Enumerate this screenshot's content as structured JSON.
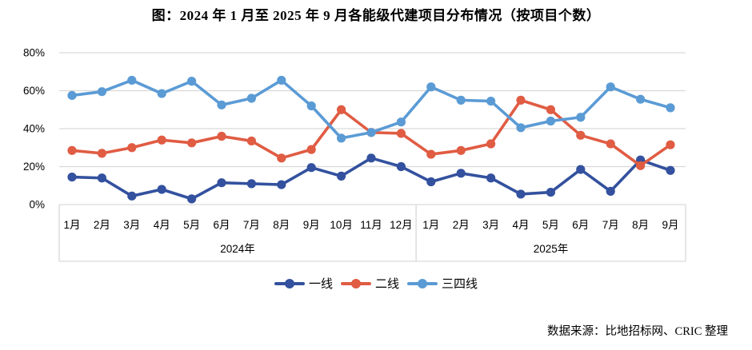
{
  "title": "图：2024 年 1 月至 2025 年 9 月各能级代建项目分布情况（按项目个数）",
  "source_note": "数据来源：比地招标网、CRIC 整理",
  "chart_data": {
    "type": "line",
    "categories": [
      "1月",
      "2月",
      "3月",
      "4月",
      "5月",
      "6月",
      "7月",
      "8月",
      "9月",
      "10月",
      "11月",
      "12月",
      "1月",
      "2月",
      "3月",
      "4月",
      "5月",
      "6月",
      "7月",
      "8月",
      "9月"
    ],
    "year_groups": [
      {
        "label": "2024年",
        "count": 12
      },
      {
        "label": "2025年",
        "count": 9
      }
    ],
    "series": [
      {
        "name": "一线",
        "color": "#33519E",
        "values": [
          14.5,
          14,
          4.5,
          8,
          3,
          11.5,
          11,
          10.5,
          19.5,
          15,
          24.5,
          20,
          12,
          16.5,
          14,
          5.5,
          6.5,
          18.5,
          7,
          23.5,
          18
        ]
      },
      {
        "name": "二线",
        "color": "#E05C43",
        "values": [
          28.5,
          27,
          30,
          34,
          32.5,
          36,
          33.5,
          24.5,
          29,
          50,
          38,
          37.5,
          26.5,
          28.5,
          32,
          55,
          50,
          36.5,
          32,
          20.5,
          31.5
        ]
      },
      {
        "name": "三四线",
        "color": "#5B9BD5",
        "values": [
          57.5,
          59.5,
          65.5,
          58.5,
          65,
          52.5,
          56,
          65.5,
          52,
          35,
          38,
          43.5,
          62,
          55,
          54.5,
          40.5,
          44,
          46,
          62,
          55.5,
          51
        ]
      }
    ],
    "y_ticks": [
      "0%",
      "20%",
      "40%",
      "60%",
      "80%"
    ],
    "ylim": [
      0,
      80
    ],
    "grid": true,
    "legend_position": "bottom",
    "colors": {
      "grid": "#D9D9D9",
      "axis_box": "#D9D9D9",
      "text": "#000000"
    }
  }
}
